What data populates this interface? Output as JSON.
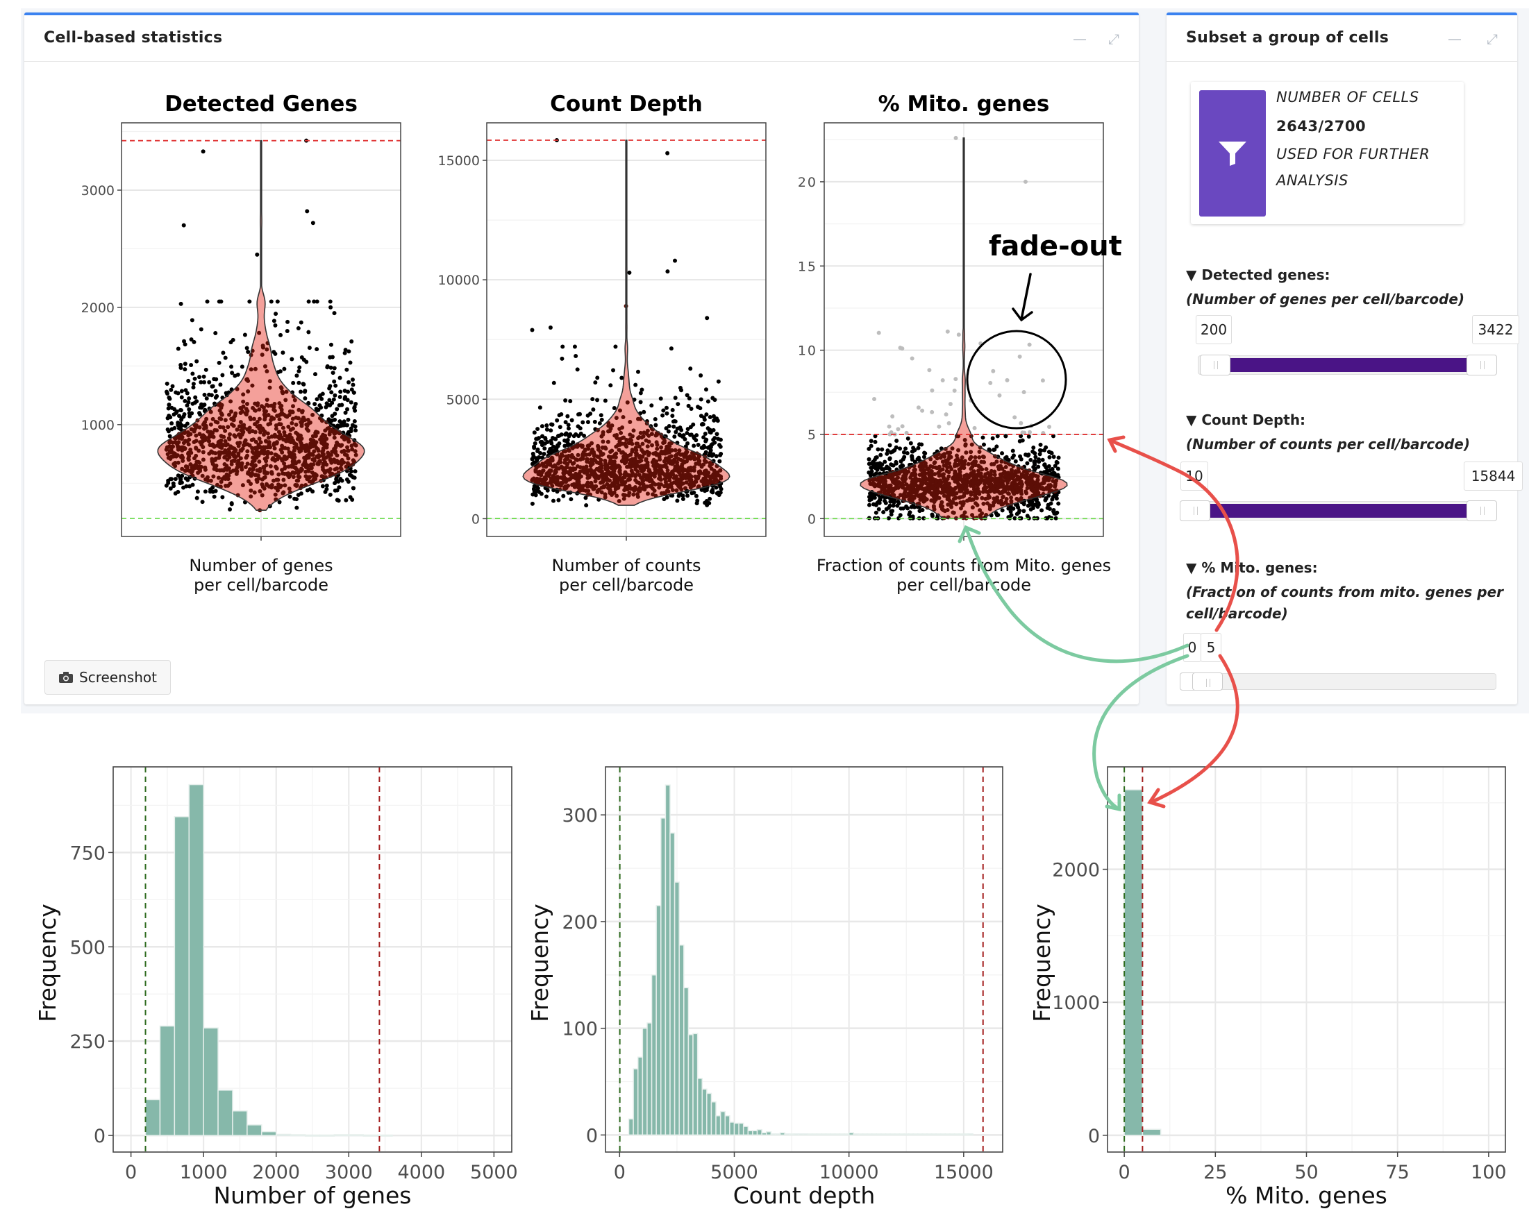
{
  "stats_box": {
    "title": "Cell-based statistics",
    "screenshot_label": "Screenshot",
    "minimize_icon": "minus-icon",
    "expand_icon": "expand-icon"
  },
  "subset_box": {
    "title": "Subset a group of cells",
    "card": {
      "icon": "filter-icon",
      "icon_bg": "#6a48c0",
      "line1": "NUMBER OF CELLS",
      "count": "2643/2700",
      "line3": "USED FOR FURTHER",
      "line4": "ANALYSIS"
    },
    "filters": [
      {
        "label": "Detected genes:",
        "sublabel": "(Number of genes per cell/barcode)",
        "min": "200",
        "max": "3422",
        "range_fraction": [
          0.06,
          1.0
        ]
      },
      {
        "label": "Count Depth:",
        "sublabel": "(Number of counts per cell/barcode)",
        "min": "10",
        "max": "15844",
        "range_fraction": [
          0.0,
          1.0
        ]
      },
      {
        "label": "% Mito. genes:",
        "sublabel": "(Fraction of counts from mito. genes per cell/barcode)",
        "min": "0",
        "max": "5",
        "range_fraction": [
          0.0,
          0.05
        ]
      }
    ],
    "slider_color": "#4a1486"
  },
  "annotation": {
    "text": "fade-out"
  },
  "colors": {
    "accent": "#3b82f0",
    "violin_fill": "#f4a09a",
    "point_inside": "#5c0e06",
    "max_line": "#e03030",
    "min_line": "#6fdc50",
    "hist_fill": "#86b8aa",
    "arrow_red": "#e8504a",
    "arrow_green": "#7ccaa0"
  },
  "chart_data": [
    {
      "type": "violin",
      "title": "Detected Genes",
      "xlabel": [
        "Number of genes",
        "per cell/barcode"
      ],
      "yticks": [
        1000,
        2000,
        3000
      ],
      "ylim": [
        46,
        3574
      ],
      "thresholds": {
        "min": 200,
        "max": 3422
      },
      "median_approx": 820,
      "outliers": [
        2700,
        2820,
        2720,
        2450,
        3330,
        3422,
        2030,
        2000
      ]
    },
    {
      "type": "violin",
      "title": "Count Depth",
      "xlabel": [
        "Number of counts",
        "per cell/barcode"
      ],
      "yticks": [
        0,
        5000,
        10000,
        15000
      ],
      "ylim": [
        -744,
        16570
      ],
      "thresholds": {
        "min": 10,
        "max": 15844
      },
      "median_approx": 2200,
      "outliers": [
        10800,
        10300,
        10350,
        15844,
        15300,
        8000,
        7900,
        8900,
        8400
      ]
    },
    {
      "type": "violin",
      "title": "% Mito. genes",
      "xlabel": [
        "Fraction of counts from Mito. genes",
        "per cell/barcode"
      ],
      "yticks": [
        0,
        5,
        10,
        15,
        20
      ],
      "ylim": [
        -1.06,
        23.5
      ],
      "thresholds": {
        "min": 0,
        "max": 5
      },
      "median_approx": 2.2,
      "outliers": [
        20,
        22.6,
        10.4,
        10.1
      ]
    },
    {
      "type": "bar",
      "subtype": "histogram",
      "xlabel": "Number of genes",
      "ylabel": "Frequency",
      "xlim": [
        -245,
        5245
      ],
      "ylim": [
        -44,
        977
      ],
      "xticks": [
        0,
        1000,
        2000,
        3000,
        4000,
        5000
      ],
      "yticks": [
        0,
        250,
        500,
        750
      ],
      "bin_start": 200,
      "bin_width": 200,
      "values": [
        95,
        290,
        845,
        930,
        285,
        120,
        65,
        28,
        10,
        3,
        2,
        1,
        1,
        2,
        2,
        1,
        1
      ],
      "thresholds": {
        "min": 200,
        "max": 3422
      }
    },
    {
      "type": "bar",
      "subtype": "histogram",
      "xlabel": "Count depth",
      "ylabel": "Frequency",
      "xlim": [
        -615,
        16700
      ],
      "ylim": [
        -16,
        345
      ],
      "xticks": [
        0,
        5000,
        10000,
        15000
      ],
      "yticks": [
        0,
        100,
        200,
        300
      ],
      "bin_start": 400,
      "bin_width": 200,
      "values": [
        15,
        62,
        73,
        100,
        105,
        150,
        215,
        297,
        328,
        283,
        237,
        178,
        138,
        94,
        95,
        53,
        43,
        39,
        31,
        18,
        22,
        18,
        12,
        11,
        11,
        8,
        4,
        4,
        5,
        2,
        3,
        1,
        1,
        2,
        1,
        0,
        1,
        1,
        1,
        0,
        0,
        0,
        0,
        0,
        0,
        0,
        0,
        0,
        2,
        1,
        0,
        0,
        0,
        0,
        0,
        0,
        0,
        0,
        0,
        0,
        0,
        0,
        0,
        0,
        0,
        0,
        0,
        0,
        0,
        0,
        0,
        0,
        0,
        0,
        1
      ],
      "thresholds": {
        "min": 10,
        "max": 15844
      }
    },
    {
      "type": "bar",
      "subtype": "histogram",
      "xlabel": "% Mito. genes",
      "ylabel": "Frequency",
      "xlim": [
        -4.6,
        104.6
      ],
      "ylim": [
        -126,
        2770
      ],
      "xticks": [
        0,
        25,
        50,
        75,
        100
      ],
      "yticks": [
        0,
        1000,
        2000
      ],
      "bin_start": 0,
      "bin_width": 5,
      "values": [
        2598,
        45
      ],
      "thresholds": {
        "min": 0,
        "max": 5
      }
    }
  ]
}
